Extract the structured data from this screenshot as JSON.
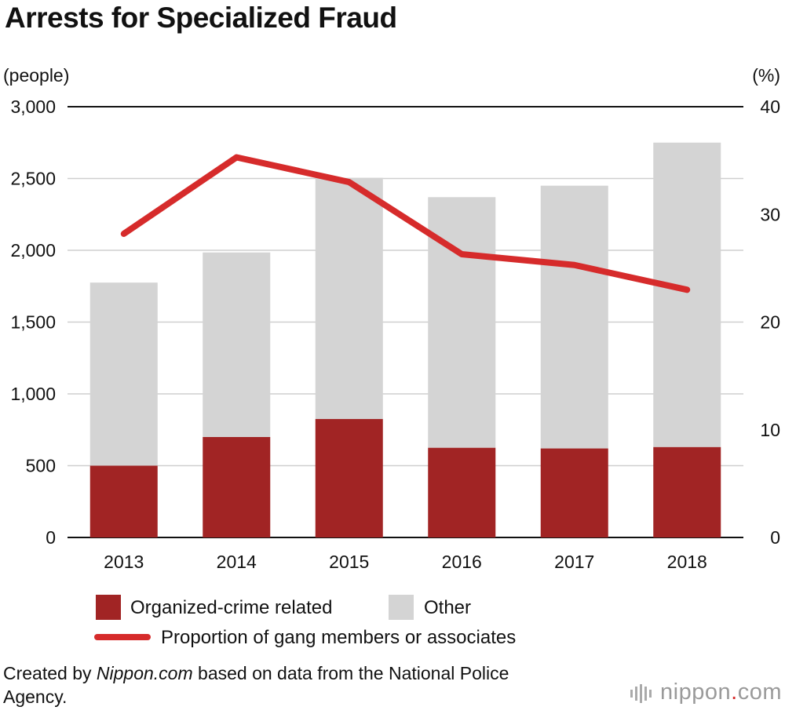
{
  "chart_data": {
    "type": "bar",
    "title": "Arrests for Specialized Fraud",
    "ylabel_left": "(people)",
    "ylabel_right": "(%)",
    "categories": [
      "2013",
      "2014",
      "2015",
      "2016",
      "2017",
      "2018"
    ],
    "ylim_left": [
      0,
      3000
    ],
    "ylim_right": [
      0,
      40
    ],
    "yticks_left": [
      "0",
      "500",
      "1,000",
      "1,500",
      "2,000",
      "2,500",
      "3,000"
    ],
    "yticks_right": [
      "0",
      "10",
      "20",
      "30",
      "40"
    ],
    "series": [
      {
        "name": "Organized-crime related",
        "type": "bar",
        "stack": "arrests",
        "color": "#a12424",
        "values": [
          500,
          700,
          825,
          625,
          620,
          630
        ]
      },
      {
        "name": "Other",
        "type": "bar",
        "stack": "arrests",
        "color": "#d4d4d4",
        "values": [
          1275,
          1285,
          1680,
          1745,
          1830,
          2120
        ]
      },
      {
        "name": "Proportion of gang members or associates",
        "type": "line",
        "axis": "right",
        "color": "#d62b2b",
        "values": [
          28.2,
          35.3,
          33.0,
          26.3,
          25.3,
          23.0
        ]
      }
    ],
    "grid": true
  },
  "source": {
    "prefix": "Created by ",
    "site": "Nippon.com",
    "suffix": " based on data from the National Police Agency."
  },
  "brand": {
    "name": "nippon",
    "dot": ".",
    "tld": "com"
  }
}
